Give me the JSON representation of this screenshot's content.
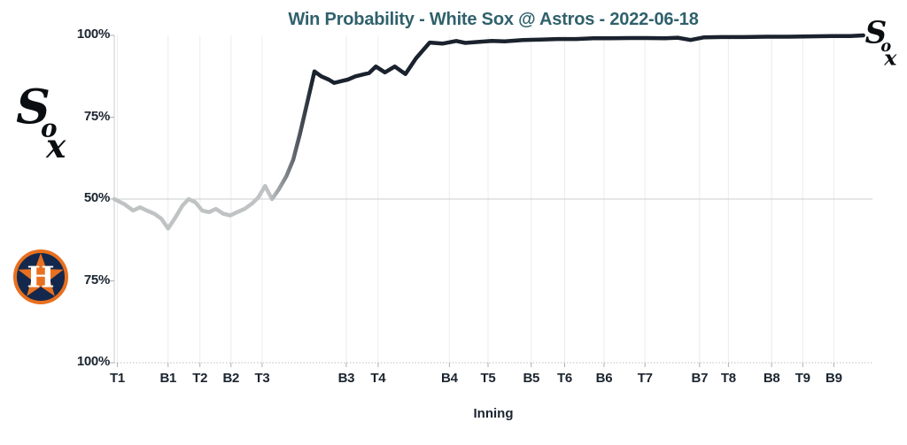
{
  "title": "Win Probability - White Sox @ Astros - 2022-06-18",
  "teams": {
    "away": "White Sox",
    "home": "Astros"
  },
  "date": "2022-06-18",
  "icons": {
    "away_logo": "white-sox-logo",
    "home_logo": "astros-logo",
    "line_endpoint": "white-sox-logo"
  },
  "logos": {
    "sox": {
      "team": "White Sox",
      "letters": [
        "S",
        "o",
        "x"
      ]
    },
    "astros": {
      "team": "Astros",
      "letter": "H"
    }
  },
  "colors": {
    "title": "#30616c",
    "axis_text": "#1b2530",
    "line_dark": "#1a222e",
    "line_light": "#c0c3c4",
    "grid": "#ececec",
    "midline": "#c9cdcf",
    "tick": "#aab0b4",
    "bottom_dotted": "#bcbfc0",
    "sox_black": "#0b0e11",
    "astros_navy": "#13284c",
    "astros_orange": "#e8701f",
    "background": "#ffffff"
  },
  "chart_data": {
    "type": "line",
    "title": "Win Probability - White Sox @ Astros - 2022-06-18",
    "xlabel": "Inning",
    "ylabel": "",
    "y_axis_note": "Mirrored win probability: top half = White Sox (50-100%), bottom half = Astros (50-100%)",
    "x_units": "fraction of plot width; one step per plate appearance, innings non-uniform",
    "grid": true,
    "legend": "none",
    "y_ticks": [
      {
        "label": "100%",
        "wp": 100
      },
      {
        "label": "75%",
        "wp": 75
      },
      {
        "label": "50%",
        "wp": 50
      },
      {
        "label": "75%",
        "wp": 25
      },
      {
        "label": "100%",
        "wp": 0
      }
    ],
    "x_ticks": [
      {
        "label": "T1",
        "pos": 0.004
      },
      {
        "label": "B1",
        "pos": 0.071
      },
      {
        "label": "T2",
        "pos": 0.113
      },
      {
        "label": "B2",
        "pos": 0.154
      },
      {
        "label": "T3",
        "pos": 0.195
      },
      {
        "label": "B3",
        "pos": 0.306
      },
      {
        "label": "T4",
        "pos": 0.348
      },
      {
        "label": "B4",
        "pos": 0.442
      },
      {
        "label": "T5",
        "pos": 0.493
      },
      {
        "label": "B5",
        "pos": 0.55
      },
      {
        "label": "T6",
        "pos": 0.594
      },
      {
        "label": "B6",
        "pos": 0.646
      },
      {
        "label": "T7",
        "pos": 0.7
      },
      {
        "label": "B7",
        "pos": 0.772
      },
      {
        "label": "T8",
        "pos": 0.81
      },
      {
        "label": "B8",
        "pos": 0.867
      },
      {
        "label": "T9",
        "pos": 0.908
      },
      {
        "label": "B9",
        "pos": 0.949
      }
    ],
    "series": [
      {
        "name": "White Sox win probability (%)",
        "points": [
          [
            0.0,
            50
          ],
          [
            0.013,
            48.5
          ],
          [
            0.025,
            46.5
          ],
          [
            0.034,
            47.5
          ],
          [
            0.043,
            46.5
          ],
          [
            0.053,
            45.5
          ],
          [
            0.062,
            44
          ],
          [
            0.071,
            41
          ],
          [
            0.081,
            44.5
          ],
          [
            0.09,
            48
          ],
          [
            0.098,
            50
          ],
          [
            0.107,
            49
          ],
          [
            0.116,
            46.5
          ],
          [
            0.125,
            46
          ],
          [
            0.134,
            47
          ],
          [
            0.144,
            45.5
          ],
          [
            0.153,
            45
          ],
          [
            0.162,
            46
          ],
          [
            0.172,
            47
          ],
          [
            0.181,
            48.5
          ],
          [
            0.19,
            50.5
          ],
          [
            0.199,
            54
          ],
          [
            0.208,
            50
          ],
          [
            0.217,
            53
          ],
          [
            0.227,
            57
          ],
          [
            0.236,
            62
          ],
          [
            0.245,
            70
          ],
          [
            0.255,
            80
          ],
          [
            0.264,
            89
          ],
          [
            0.273,
            87.5
          ],
          [
            0.283,
            86.5
          ],
          [
            0.29,
            85.5
          ],
          [
            0.299,
            86
          ],
          [
            0.308,
            86.5
          ],
          [
            0.318,
            87.5
          ],
          [
            0.327,
            88
          ],
          [
            0.336,
            88.5
          ],
          [
            0.345,
            90.5
          ],
          [
            0.357,
            88.7
          ],
          [
            0.37,
            90.5
          ],
          [
            0.384,
            88.2
          ],
          [
            0.398,
            93
          ],
          [
            0.416,
            97.8
          ],
          [
            0.433,
            97.5
          ],
          [
            0.451,
            98.3
          ],
          [
            0.463,
            97.7
          ],
          [
            0.48,
            98
          ],
          [
            0.498,
            98.3
          ],
          [
            0.515,
            98.2
          ],
          [
            0.539,
            98.6
          ],
          [
            0.562,
            98.7
          ],
          [
            0.585,
            98.9
          ],
          [
            0.609,
            98.9
          ],
          [
            0.632,
            99.1
          ],
          [
            0.655,
            99.1
          ],
          [
            0.679,
            99.2
          ],
          [
            0.702,
            99.2
          ],
          [
            0.726,
            99.1
          ],
          [
            0.743,
            99.3
          ],
          [
            0.76,
            98.6
          ],
          [
            0.778,
            99.4
          ],
          [
            0.801,
            99.5
          ],
          [
            0.83,
            99.5
          ],
          [
            0.86,
            99.6
          ],
          [
            0.889,
            99.6
          ],
          [
            0.918,
            99.7
          ],
          [
            0.947,
            99.8
          ],
          [
            0.971,
            99.8
          ],
          [
            0.988,
            100
          ]
        ]
      }
    ]
  }
}
